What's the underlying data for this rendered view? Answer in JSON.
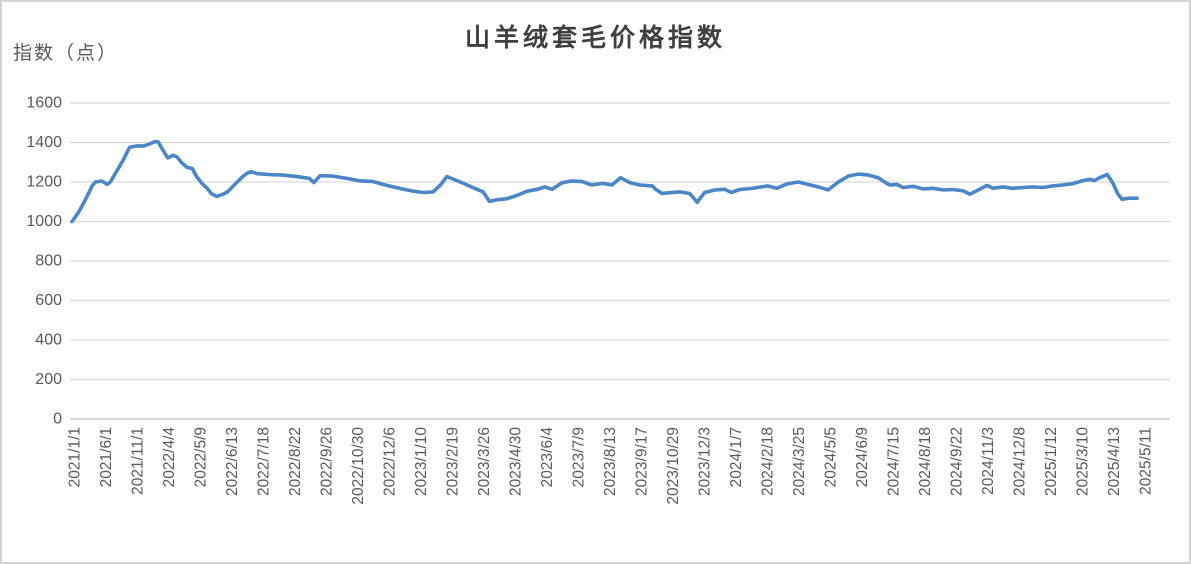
{
  "chart": {
    "title": "山羊绒套毛价格指数",
    "y_axis_title": "指数（点）"
  },
  "chart_data": {
    "type": "line",
    "title": "山羊绒套毛价格指数",
    "ylabel": "指数（点）",
    "xlabel": "",
    "ylim": [
      0,
      1600
    ],
    "yticks": [
      0,
      200,
      400,
      600,
      800,
      1000,
      1200,
      1400,
      1600
    ],
    "grid": true,
    "legend": false,
    "xtick_rotation": 90,
    "colors": {
      "line": "#4a86c8",
      "gridline": "#d9d9d9",
      "axis_line": "#bfbfbf",
      "tick_label": "#595959",
      "title": "#3f3f3f"
    },
    "xticks": [
      "2021/1/1",
      "2021/6/1",
      "2021/11/1",
      "2022/4/4",
      "2022/5/9",
      "2022/6/13",
      "2022/7/18",
      "2022/8/22",
      "2022/9/26",
      "2022/10/30",
      "2022/12/6",
      "2023/1/10",
      "2023/2/19",
      "2023/3/26",
      "2023/4/30",
      "2023/6/4",
      "2023/7/9",
      "2023/8/13",
      "2023/9/17",
      "2023/10/29",
      "2023/12/3",
      "2024/1/7",
      "2024/2/18",
      "2024/3/25",
      "2024/5/5",
      "2024/6/9",
      "2024/7/15",
      "2024/8/18",
      "2024/9/22",
      "2024/11/3",
      "2024/12/8",
      "2025/1/12",
      "2025/3/10",
      "2025/4/13",
      "2025/5/11"
    ],
    "series": [
      {
        "name": "山羊绒套毛价格指数",
        "points": [
          [
            0.0,
            1000
          ],
          [
            0.006,
            1045
          ],
          [
            0.012,
            1105
          ],
          [
            0.019,
            1180
          ],
          [
            0.022,
            1200
          ],
          [
            0.028,
            1205
          ],
          [
            0.033,
            1188
          ],
          [
            0.036,
            1200
          ],
          [
            0.042,
            1255
          ],
          [
            0.048,
            1310
          ],
          [
            0.054,
            1375
          ],
          [
            0.061,
            1383
          ],
          [
            0.067,
            1382
          ],
          [
            0.073,
            1393
          ],
          [
            0.078,
            1405
          ],
          [
            0.081,
            1402
          ],
          [
            0.085,
            1365
          ],
          [
            0.09,
            1322
          ],
          [
            0.095,
            1335
          ],
          [
            0.099,
            1325
          ],
          [
            0.103,
            1297
          ],
          [
            0.108,
            1275
          ],
          [
            0.113,
            1268
          ],
          [
            0.117,
            1228
          ],
          [
            0.122,
            1193
          ],
          [
            0.127,
            1167
          ],
          [
            0.131,
            1141
          ],
          [
            0.136,
            1127
          ],
          [
            0.141,
            1136
          ],
          [
            0.146,
            1150
          ],
          [
            0.15,
            1172
          ],
          [
            0.155,
            1200
          ],
          [
            0.16,
            1226
          ],
          [
            0.164,
            1243
          ],
          [
            0.168,
            1252
          ],
          [
            0.174,
            1242
          ],
          [
            0.184,
            1238
          ],
          [
            0.198,
            1235
          ],
          [
            0.212,
            1227
          ],
          [
            0.223,
            1218
          ],
          [
            0.227,
            1197
          ],
          [
            0.233,
            1232
          ],
          [
            0.245,
            1230
          ],
          [
            0.258,
            1218
          ],
          [
            0.27,
            1206
          ],
          [
            0.283,
            1202
          ],
          [
            0.292,
            1188
          ],
          [
            0.301,
            1176
          ],
          [
            0.311,
            1164
          ],
          [
            0.32,
            1154
          ],
          [
            0.33,
            1147
          ],
          [
            0.339,
            1150
          ],
          [
            0.346,
            1185
          ],
          [
            0.352,
            1228
          ],
          [
            0.36,
            1210
          ],
          [
            0.369,
            1190
          ],
          [
            0.378,
            1168
          ],
          [
            0.386,
            1150
          ],
          [
            0.392,
            1102
          ],
          [
            0.399,
            1110
          ],
          [
            0.408,
            1115
          ],
          [
            0.418,
            1132
          ],
          [
            0.427,
            1153
          ],
          [
            0.437,
            1163
          ],
          [
            0.444,
            1175
          ],
          [
            0.451,
            1163
          ],
          [
            0.46,
            1196
          ],
          [
            0.469,
            1205
          ],
          [
            0.479,
            1202
          ],
          [
            0.488,
            1185
          ],
          [
            0.498,
            1193
          ],
          [
            0.507,
            1185
          ],
          [
            0.515,
            1222
          ],
          [
            0.524,
            1196
          ],
          [
            0.533,
            1185
          ],
          [
            0.545,
            1180
          ],
          [
            0.548,
            1163
          ],
          [
            0.554,
            1142
          ],
          [
            0.561,
            1146
          ],
          [
            0.571,
            1150
          ],
          [
            0.58,
            1142
          ],
          [
            0.587,
            1097
          ],
          [
            0.594,
            1147
          ],
          [
            0.604,
            1160
          ],
          [
            0.613,
            1163
          ],
          [
            0.619,
            1147
          ],
          [
            0.627,
            1162
          ],
          [
            0.639,
            1168
          ],
          [
            0.653,
            1180
          ],
          [
            0.662,
            1168
          ],
          [
            0.671,
            1190
          ],
          [
            0.682,
            1200
          ],
          [
            0.691,
            1188
          ],
          [
            0.7,
            1176
          ],
          [
            0.71,
            1160
          ],
          [
            0.719,
            1198
          ],
          [
            0.729,
            1230
          ],
          [
            0.738,
            1240
          ],
          [
            0.747,
            1236
          ],
          [
            0.757,
            1222
          ],
          [
            0.763,
            1200
          ],
          [
            0.768,
            1185
          ],
          [
            0.775,
            1188
          ],
          [
            0.78,
            1172
          ],
          [
            0.79,
            1178
          ],
          [
            0.799,
            1165
          ],
          [
            0.808,
            1168
          ],
          [
            0.818,
            1160
          ],
          [
            0.827,
            1162
          ],
          [
            0.837,
            1155
          ],
          [
            0.843,
            1138
          ],
          [
            0.853,
            1165
          ],
          [
            0.859,
            1183
          ],
          [
            0.865,
            1168
          ],
          [
            0.874,
            1175
          ],
          [
            0.883,
            1168
          ],
          [
            0.893,
            1172
          ],
          [
            0.902,
            1175
          ],
          [
            0.912,
            1172
          ],
          [
            0.921,
            1180
          ],
          [
            0.93,
            1185
          ],
          [
            0.94,
            1192
          ],
          [
            0.949,
            1207
          ],
          [
            0.956,
            1213
          ],
          [
            0.96,
            1207
          ],
          [
            0.965,
            1222
          ],
          [
            0.972,
            1238
          ],
          [
            0.977,
            1198
          ],
          [
            0.982,
            1140
          ],
          [
            0.986,
            1112
          ],
          [
            0.992,
            1118
          ],
          [
            1.0,
            1118
          ]
        ]
      }
    ]
  }
}
